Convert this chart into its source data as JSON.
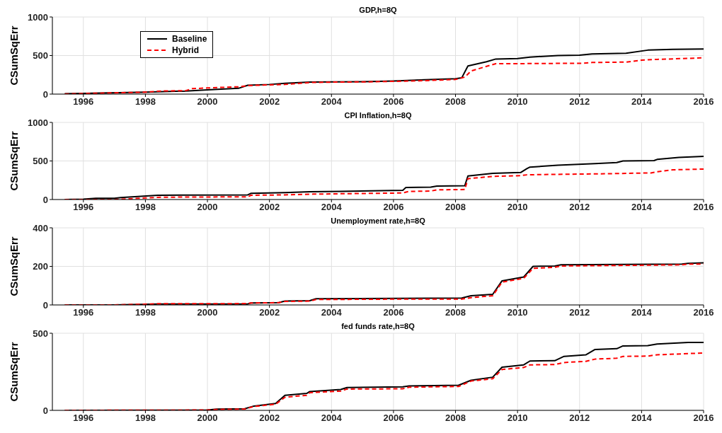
{
  "chart_data": [
    {
      "type": "line",
      "title": "GDP,h=8Q",
      "ylabel": "CSumSqErr",
      "xlim": [
        1995,
        2016
      ],
      "xticks": [
        1996,
        1998,
        2000,
        2002,
        2004,
        2006,
        2008,
        2010,
        2012,
        2014,
        2016
      ],
      "ylim": [
        0,
        1000
      ],
      "yticks": [
        0,
        500,
        1000
      ],
      "grid": true,
      "legend": "top left",
      "series": [
        {
          "name": "Baseline",
          "color": "#000000",
          "line_style": "solid",
          "x": [
            1995.4,
            1996,
            1998,
            1999.3,
            2000,
            2001,
            2001.3,
            2002,
            2002.5,
            2003.3,
            2004,
            2005,
            2006,
            2007,
            2008,
            2008.2,
            2008.4,
            2009,
            2009.3,
            2010,
            2010.4,
            2011.3,
            2012,
            2012.4,
            2013.5,
            2014.2,
            2015,
            2016
          ],
          "values": [
            5,
            10,
            25,
            40,
            55,
            75,
            115,
            125,
            140,
            155,
            158,
            160,
            170,
            185,
            200,
            210,
            365,
            420,
            455,
            460,
            480,
            500,
            505,
            520,
            530,
            570,
            580,
            585
          ]
        },
        {
          "name": "Hybrid",
          "color": "#ff0000",
          "line_style": "dashed",
          "x": [
            1995.4,
            1996,
            1998,
            1998.5,
            1999.3,
            1999.5,
            2000,
            2001,
            2001.3,
            2002,
            2002.5,
            2003.3,
            2004,
            2005,
            2006,
            2007,
            2008,
            2008.3,
            2008.5,
            2009,
            2009.3,
            2010,
            2012.1,
            2012.4,
            2013.5,
            2014,
            2014.5,
            2016
          ],
          "values": [
            2,
            8,
            25,
            40,
            45,
            70,
            80,
            95,
            110,
            120,
            125,
            150,
            155,
            158,
            165,
            175,
            190,
            220,
            300,
            360,
            395,
            395,
            400,
            410,
            415,
            440,
            450,
            470
          ]
        }
      ]
    },
    {
      "type": "line",
      "title": "CPI Inflation,h=8Q",
      "ylabel": "CSumSqErr",
      "xlim": [
        1995,
        2016
      ],
      "xticks": [
        1996,
        1998,
        2000,
        2002,
        2004,
        2006,
        2008,
        2010,
        2012,
        2014,
        2016
      ],
      "ylim": [
        0,
        1000
      ],
      "yticks": [
        0,
        500,
        1000
      ],
      "grid": true,
      "series": [
        {
          "color": "#000000",
          "line_style": "solid",
          "x": [
            1995.4,
            1996,
            1996.4,
            1997,
            1997.2,
            1998.4,
            2001.3,
            2001.4,
            2002.5,
            2003.3,
            2004.3,
            2006.3,
            2006.4,
            2007.2,
            2007.4,
            2008.3,
            2008.4,
            2009.2,
            2010.1,
            2010.3,
            2010.4,
            2011.3,
            2012.5,
            2013.2,
            2013.4,
            2014.4,
            2014.5,
            2015.2,
            2016
          ],
          "values": [
            0,
            5,
            15,
            15,
            25,
            55,
            60,
            80,
            90,
            100,
            105,
            120,
            155,
            160,
            175,
            180,
            305,
            340,
            350,
            400,
            420,
            445,
            465,
            480,
            500,
            505,
            520,
            545,
            560
          ]
        },
        {
          "color": "#ff0000",
          "line_style": "dashed",
          "x": [
            1995.4,
            1997,
            1998,
            1998.5,
            2001.3,
            2001.4,
            2002.5,
            2003.4,
            2006.3,
            2006.5,
            2007.2,
            2007.4,
            2008.3,
            2008.4,
            2009.2,
            2010.1,
            2010.3,
            2011,
            2013,
            2014.3,
            2014.5,
            2015,
            2016
          ],
          "values": [
            0,
            0,
            20,
            30,
            35,
            55,
            60,
            70,
            85,
            105,
            110,
            125,
            130,
            270,
            300,
            310,
            320,
            325,
            335,
            345,
            360,
            385,
            395
          ]
        }
      ]
    },
    {
      "type": "line",
      "title": "Unemployment rate,h=8Q",
      "ylabel": "CSumSqErr",
      "xlim": [
        1995,
        2016
      ],
      "xticks": [
        1996,
        1998,
        2000,
        2002,
        2004,
        2006,
        2008,
        2010,
        2012,
        2014,
        2016
      ],
      "ylim": [
        0,
        400
      ],
      "yticks": [
        0,
        200,
        400
      ],
      "grid": true,
      "series": [
        {
          "color": "#000000",
          "line_style": "solid",
          "x": [
            1995.4,
            1997,
            1998.4,
            2001.3,
            2001.4,
            2002.3,
            2002.5,
            2003.3,
            2003.5,
            2006,
            2008.2,
            2008.5,
            2009.2,
            2009.5,
            2010.2,
            2010.5,
            2011.2,
            2011.4,
            2015.3,
            2015.5,
            2016
          ],
          "values": [
            0,
            0,
            5,
            5,
            10,
            12,
            20,
            22,
            32,
            34,
            36,
            48,
            55,
            125,
            145,
            200,
            202,
            208,
            212,
            216,
            218
          ]
        },
        {
          "color": "#ff0000",
          "line_style": "dashed",
          "x": [
            1995.4,
            1997,
            1998.4,
            2001.3,
            2001.4,
            2002.3,
            2002.5,
            2003.3,
            2003.5,
            2006,
            2008.2,
            2008.5,
            2009.2,
            2009.5,
            2010.2,
            2010.5,
            2011.2,
            2011.4,
            2015.3,
            2015.5,
            2016
          ],
          "values": [
            0,
            0,
            6,
            7,
            10,
            12,
            18,
            20,
            28,
            30,
            30,
            38,
            48,
            118,
            138,
            190,
            195,
            202,
            208,
            212,
            212
          ]
        }
      ]
    },
    {
      "type": "line",
      "title": "fed funds rate,h=8Q",
      "ylabel": "CSumSqErr",
      "xlim": [
        1995,
        2016
      ],
      "xticks": [
        1996,
        1998,
        2000,
        2002,
        2004,
        2006,
        2008,
        2010,
        2012,
        2014,
        2016
      ],
      "ylim": [
        0,
        500
      ],
      "yticks": [
        0,
        500
      ],
      "grid": true,
      "series": [
        {
          "color": "#000000",
          "line_style": "solid",
          "x": [
            1995.4,
            2000,
            2000.3,
            2001.2,
            2001.5,
            2002.2,
            2002.5,
            2003.2,
            2003.3,
            2004.3,
            2004.5,
            2006.3,
            2006.5,
            2008.1,
            2008.5,
            2009.2,
            2009.5,
            2010.2,
            2010.4,
            2011.2,
            2011.5,
            2012.2,
            2012.5,
            2013.2,
            2013.4,
            2014.2,
            2014.5,
            2015.5,
            2016
          ],
          "values": [
            0,
            2,
            8,
            10,
            28,
            45,
            98,
            110,
            122,
            135,
            148,
            152,
            158,
            163,
            195,
            215,
            280,
            295,
            320,
            322,
            350,
            360,
            395,
            400,
            418,
            420,
            430,
            440,
            440
          ]
        },
        {
          "color": "#ff0000",
          "line_style": "dashed",
          "x": [
            1995.4,
            2000,
            2000.3,
            2001.2,
            2001.5,
            2002.2,
            2002.5,
            2003.2,
            2003.3,
            2004.3,
            2004.5,
            2006.3,
            2006.5,
            2008.1,
            2008.5,
            2009.2,
            2009.5,
            2010.2,
            2010.4,
            2011.2,
            2011.5,
            2012.2,
            2012.5,
            2013.2,
            2013.4,
            2014.2,
            2014.5,
            2016
          ],
          "values": [
            0,
            2,
            6,
            8,
            25,
            40,
            85,
            98,
            115,
            125,
            138,
            140,
            150,
            155,
            190,
            205,
            265,
            278,
            295,
            297,
            310,
            318,
            332,
            338,
            350,
            352,
            360,
            372
          ]
        }
      ]
    }
  ]
}
